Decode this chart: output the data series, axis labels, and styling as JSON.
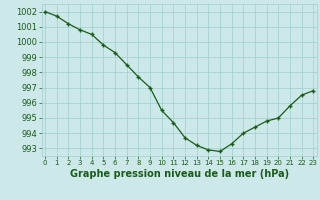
{
  "x": [
    0,
    1,
    2,
    3,
    4,
    5,
    6,
    7,
    8,
    9,
    10,
    11,
    12,
    13,
    14,
    15,
    16,
    17,
    18,
    19,
    20,
    21,
    22,
    23
  ],
  "y": [
    1002.0,
    1001.7,
    1001.2,
    1000.8,
    1000.5,
    999.8,
    999.3,
    998.5,
    997.7,
    997.0,
    995.5,
    994.7,
    993.7,
    993.2,
    992.9,
    992.8,
    993.3,
    994.0,
    994.4,
    994.8,
    995.0,
    995.8,
    996.5,
    996.8
  ],
  "line_color": "#1a5c1a",
  "marker": "+",
  "marker_color": "#1a5c1a",
  "bg_color": "#cce8e8",
  "grid_color": "#9fcfcf",
  "xlabel": "Graphe pression niveau de la mer (hPa)",
  "xlabel_fontsize": 7,
  "xlabel_color": "#1a5c1a",
  "tick_color": "#1a5c1a",
  "ytick_fontsize": 6,
  "xtick_fontsize": 5,
  "ylim": [
    992.5,
    1002.5
  ],
  "yticks": [
    993,
    994,
    995,
    996,
    997,
    998,
    999,
    1000,
    1001,
    1002
  ],
  "xticks": [
    0,
    1,
    2,
    3,
    4,
    5,
    6,
    7,
    8,
    9,
    10,
    11,
    12,
    13,
    14,
    15,
    16,
    17,
    18,
    19,
    20,
    21,
    22,
    23
  ],
  "xlim": [
    -0.3,
    23.3
  ]
}
